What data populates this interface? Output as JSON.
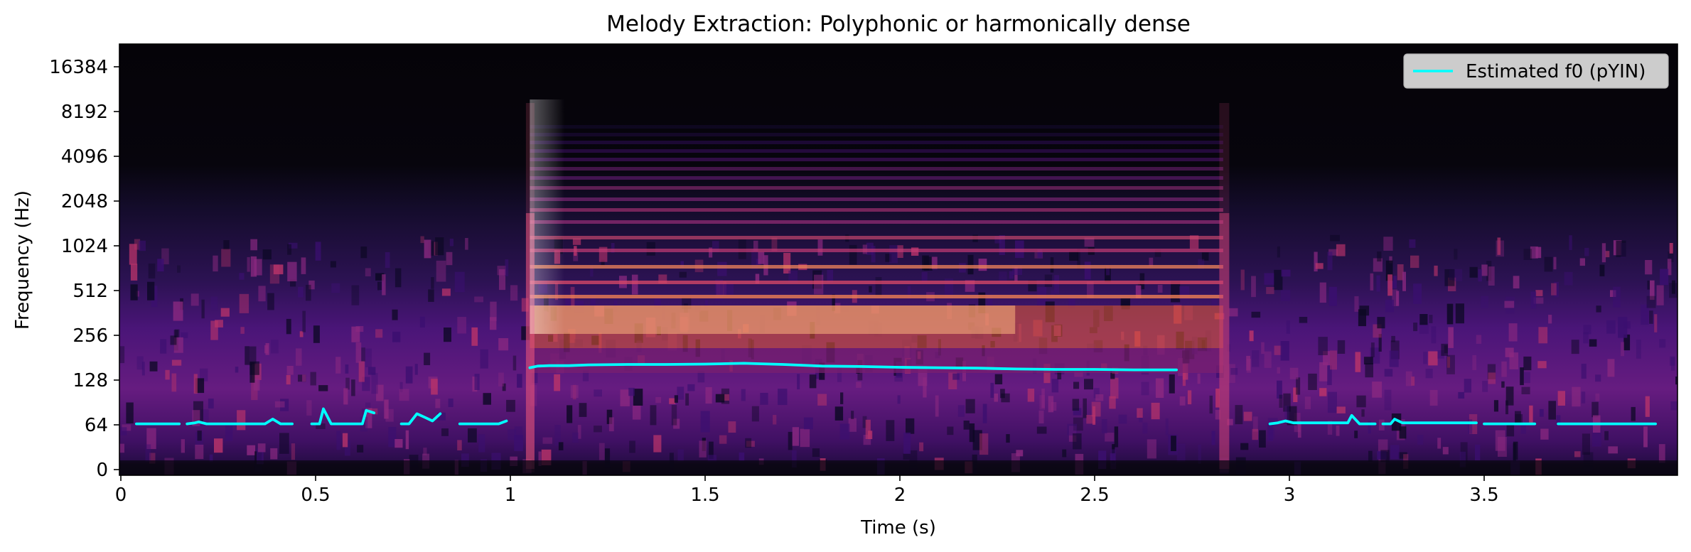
{
  "chart_data": {
    "type": "line",
    "title": "Melody Extraction: Polyphonic or harmonically dense",
    "xlabel": "Time (s)",
    "ylabel": "Frequency (Hz)",
    "xlim": [
      0,
      4.0
    ],
    "ylim": [
      0,
      22050
    ],
    "y_scale": "log2 (symlog)",
    "x_ticks": [
      0,
      0.5,
      1,
      1.5,
      2,
      2.5,
      3,
      3.5
    ],
    "x_tick_labels": [
      "0",
      "0.5",
      "1",
      "1.5",
      "2",
      "2.5",
      "3",
      "3.5"
    ],
    "y_ticks": [
      0,
      64,
      128,
      256,
      512,
      1024,
      2048,
      4096,
      8192,
      16384
    ],
    "y_tick_labels": [
      "0",
      "64",
      "128",
      "256",
      "512",
      "1024",
      "2048",
      "4096",
      "8192",
      "16384"
    ],
    "grid": false,
    "legend": {
      "placement": "top-right",
      "entries": [
        "Estimated f0 (pYIN)"
      ]
    },
    "background": "spectrogram (magma colormap)",
    "series": [
      {
        "name": "Estimated f0 (pYIN)",
        "color": "#00ffff",
        "segments": [
          [
            [
              0.04,
              65
            ],
            [
              0.15,
              65
            ]
          ],
          [
            [
              0.17,
              65
            ],
            [
              0.19,
              66
            ],
            [
              0.2,
              67
            ],
            [
              0.22,
              65
            ],
            [
              0.37,
              65
            ],
            [
              0.39,
              70
            ],
            [
              0.41,
              65
            ],
            [
              0.44,
              65
            ]
          ],
          [
            [
              0.49,
              65
            ],
            [
              0.51,
              65
            ],
            [
              0.52,
              82
            ],
            [
              0.54,
              65
            ],
            [
              0.62,
              65
            ],
            [
              0.63,
              80
            ],
            [
              0.65,
              77
            ]
          ],
          [
            [
              0.72,
              65
            ],
            [
              0.74,
              65
            ],
            [
              0.76,
              76
            ],
            [
              0.78,
              72
            ],
            [
              0.8,
              68
            ],
            [
              0.82,
              76
            ]
          ],
          [
            [
              0.87,
              65
            ],
            [
              0.97,
              65
            ],
            [
              0.99,
              68
            ]
          ],
          [
            [
              1.05,
              155
            ],
            [
              1.07,
              159
            ],
            [
              1.1,
              160
            ],
            [
              1.15,
              160
            ],
            [
              1.2,
              162
            ],
            [
              1.3,
              163
            ],
            [
              1.4,
              163
            ],
            [
              1.5,
              164
            ],
            [
              1.6,
              166
            ],
            [
              1.7,
              163
            ],
            [
              1.8,
              159
            ],
            [
              1.9,
              158
            ],
            [
              2.0,
              156
            ],
            [
              2.1,
              155
            ],
            [
              2.2,
              154
            ],
            [
              2.3,
              152
            ],
            [
              2.4,
              151
            ],
            [
              2.5,
              151
            ],
            [
              2.6,
              150
            ],
            [
              2.71,
              150
            ]
          ],
          [
            [
              2.95,
              65
            ],
            [
              2.97,
              66
            ],
            [
              2.99,
              68
            ],
            [
              3.01,
              66
            ],
            [
              3.15,
              66
            ],
            [
              3.16,
              74
            ],
            [
              3.18,
              65
            ],
            [
              3.22,
              65
            ]
          ],
          [
            [
              3.24,
              65
            ],
            [
              3.26,
              65
            ],
            [
              3.27,
              70
            ],
            [
              3.29,
              66
            ],
            [
              3.48,
              66
            ]
          ],
          [
            [
              3.5,
              65
            ],
            [
              3.63,
              65
            ]
          ],
          [
            [
              3.69,
              65
            ],
            [
              3.94,
              65
            ]
          ]
        ]
      }
    ]
  }
}
